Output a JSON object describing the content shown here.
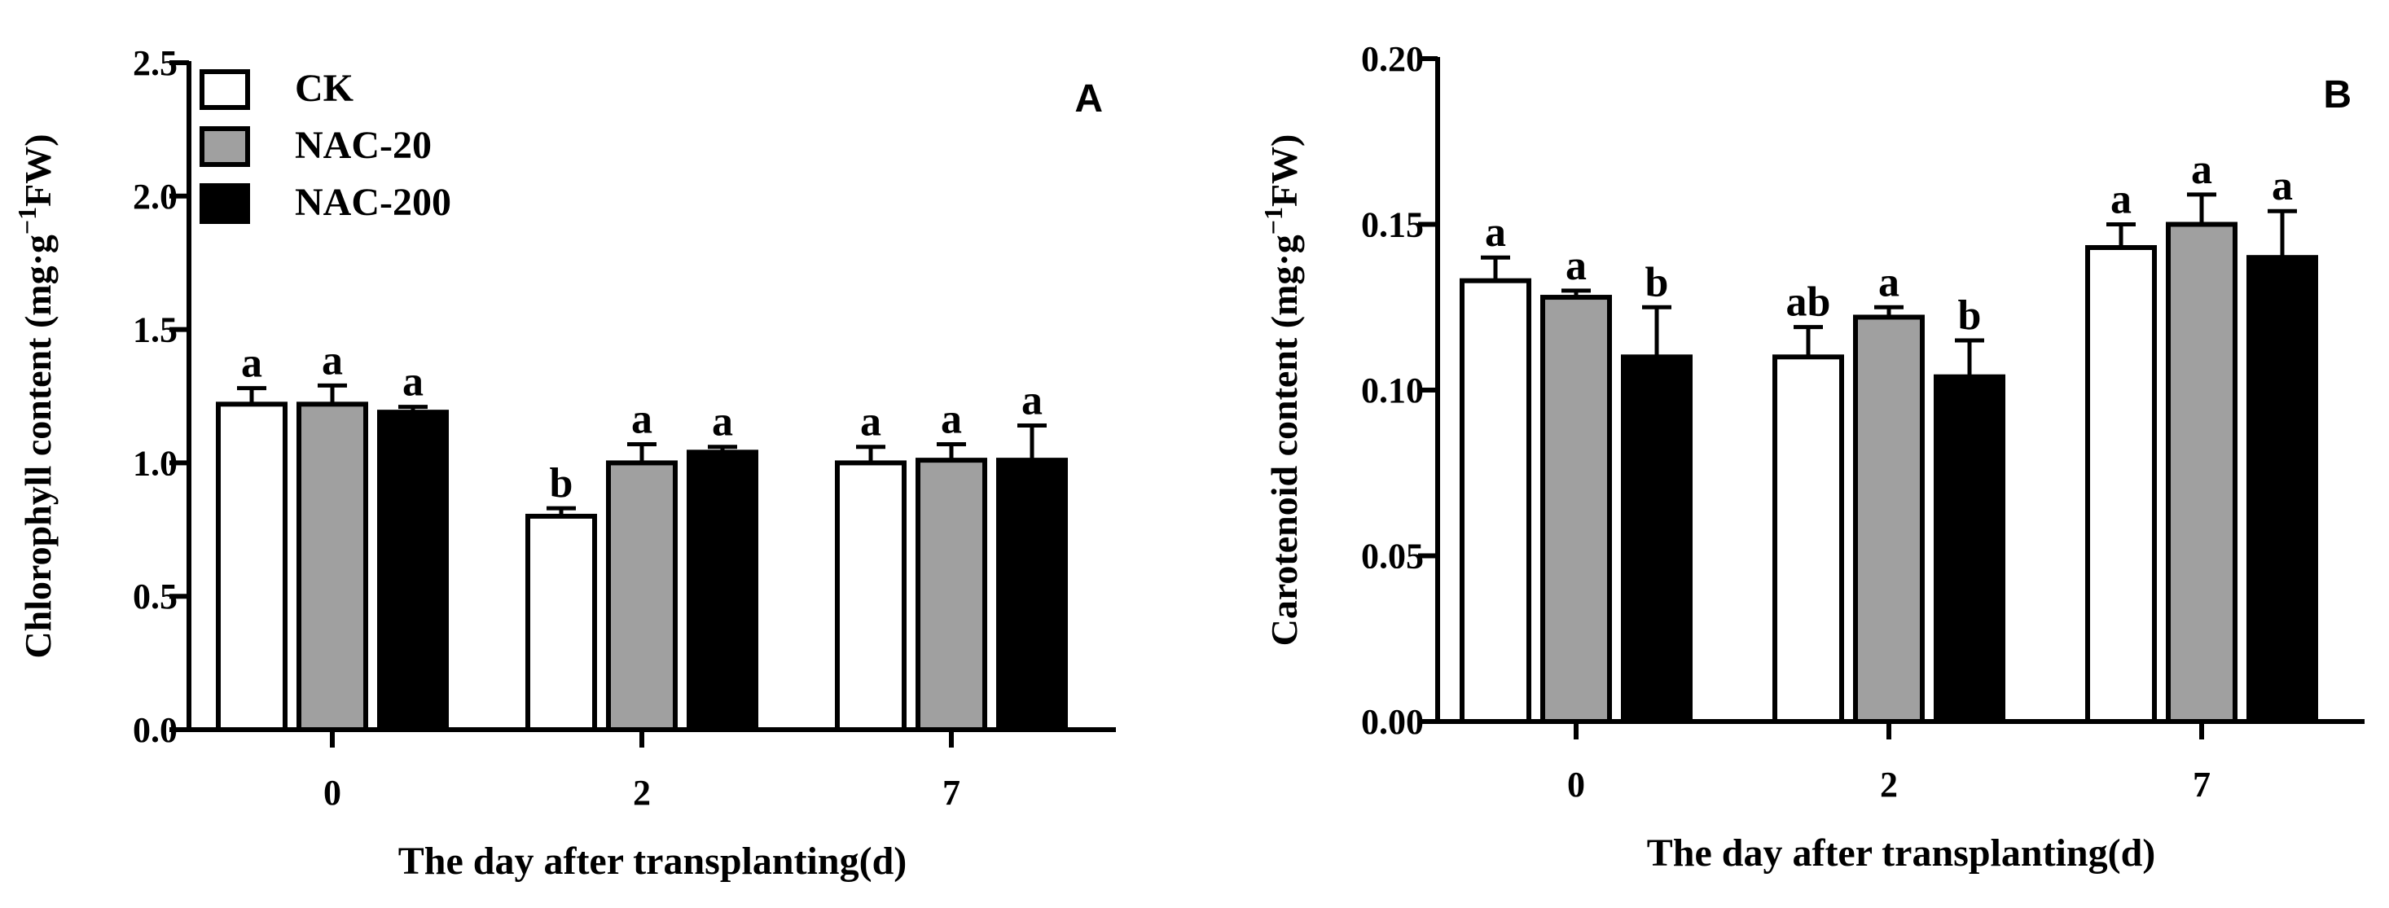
{
  "chart_data": [
    {
      "type": "bar",
      "panel_label": "A",
      "ylabel": {
        "main": "Chlorophyll content (mg·g",
        "sup": "−1",
        "tail": "FW)"
      },
      "xlabel": "The day after transplanting(d)",
      "categories": [
        "0",
        "2",
        "7"
      ],
      "ylim": [
        0,
        2.5
      ],
      "yticks": [
        "0.0",
        "0.5",
        "1.0",
        "1.5",
        "2.0",
        "2.5"
      ],
      "grid": false,
      "legend_position": "top-left",
      "series": [
        {
          "name": "CK",
          "color": "#ffffff",
          "values": [
            1.22,
            0.8,
            1.0
          ],
          "errors": [
            0.06,
            0.03,
            0.06
          ],
          "letters": [
            "a",
            "b",
            "a"
          ]
        },
        {
          "name": "NAC-20",
          "color": "#a0a0a0",
          "values": [
            1.22,
            1.0,
            1.01
          ],
          "errors": [
            0.07,
            0.07,
            0.06
          ],
          "letters": [
            "a",
            "a",
            "a"
          ]
        },
        {
          "name": "NAC-200",
          "color": "#000000",
          "values": [
            1.19,
            1.04,
            1.01
          ],
          "errors": [
            0.02,
            0.02,
            0.13
          ],
          "letters": [
            "a",
            "a",
            "a"
          ]
        }
      ]
    },
    {
      "type": "bar",
      "panel_label": "B",
      "ylabel": {
        "main": "Carotenoid content (mg·g",
        "sup": "−1",
        "tail": "FW)"
      },
      "xlabel": "The day after transplanting(d)",
      "categories": [
        "0",
        "2",
        "7"
      ],
      "ylim": [
        0,
        0.2
      ],
      "yticks": [
        "0.00",
        "0.05",
        "0.10",
        "0.15",
        "0.20"
      ],
      "grid": false,
      "series": [
        {
          "name": "CK",
          "color": "#ffffff",
          "values": [
            0.133,
            0.11,
            0.143
          ],
          "errors": [
            0.007,
            0.009,
            0.007
          ],
          "letters": [
            "a",
            "ab",
            "a"
          ]
        },
        {
          "name": "NAC-20",
          "color": "#a0a0a0",
          "values": [
            0.128,
            0.122,
            0.15
          ],
          "errors": [
            0.002,
            0.003,
            0.009
          ],
          "letters": [
            "a",
            "a",
            "a"
          ]
        },
        {
          "name": "NAC-200",
          "color": "#000000",
          "values": [
            0.11,
            0.104,
            0.14
          ],
          "errors": [
            0.015,
            0.011,
            0.014
          ],
          "letters": [
            "b",
            "b",
            "a"
          ]
        }
      ]
    }
  ]
}
